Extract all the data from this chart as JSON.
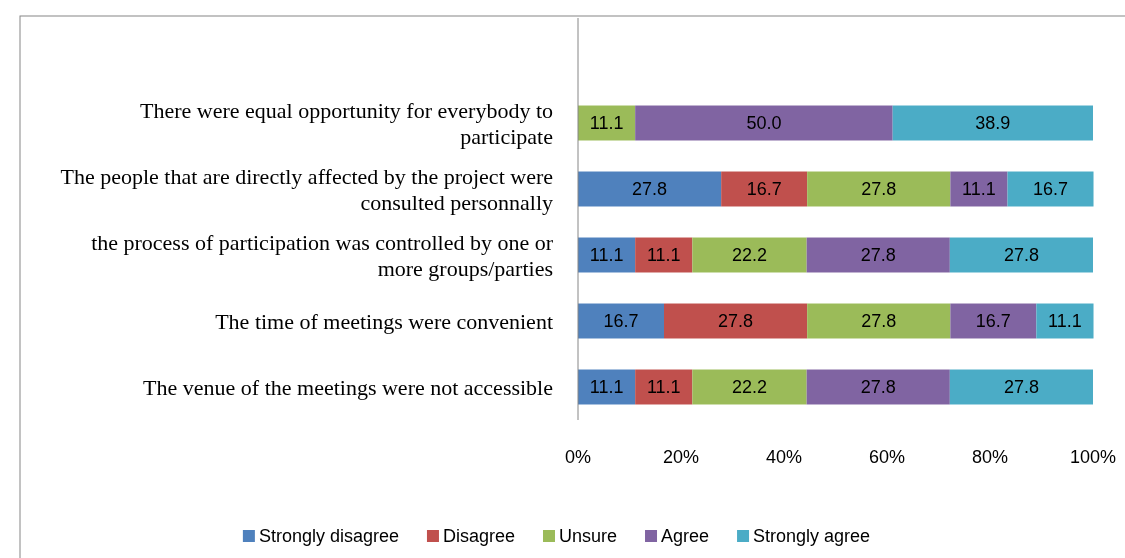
{
  "chart_data": {
    "type": "bar",
    "orientation": "horizontal",
    "stacked": true,
    "categories": [
      "There were equal opportunity for everybody to participate",
      "The people that are directly affected by the project were consulted personnally",
      "the process of participation was controlled by one or more groups/parties",
      "The time of meetings were convenient",
      "The venue of the meetings were not accessible"
    ],
    "series": [
      {
        "name": "Strongly disagree",
        "color": "#4f81bd",
        "values": [
          null,
          27.8,
          11.1,
          16.7,
          11.1
        ],
        "value_labels": [
          null,
          "27.8",
          "11.1",
          "16.7",
          "11.1"
        ]
      },
      {
        "name": "Disagree",
        "color": "#c0504d",
        "values": [
          null,
          16.7,
          11.1,
          27.8,
          11.1
        ],
        "value_labels": [
          null,
          "16.7",
          "11.1",
          "27.8",
          "11.1"
        ]
      },
      {
        "name": "Unsure",
        "color": "#9bbb59",
        "values": [
          11.1,
          27.8,
          22.2,
          27.8,
          22.2
        ],
        "value_labels": [
          "11.1",
          "27.8",
          "22.2",
          "27.8",
          "22.2"
        ]
      },
      {
        "name": "Agree",
        "color": "#8064a2",
        "values": [
          50.0,
          11.1,
          27.8,
          16.7,
          27.8
        ],
        "value_labels": [
          "50.0",
          "11.1",
          "27.8",
          "16.7",
          "27.8"
        ]
      },
      {
        "name": "Strongly agree",
        "color": "#4bacc6",
        "values": [
          38.9,
          16.7,
          27.8,
          11.1,
          27.8
        ],
        "value_labels": [
          "38.9",
          "16.7",
          "27.8",
          "11.1",
          "27.8"
        ]
      }
    ],
    "xlim": [
      0,
      100
    ],
    "xticks": [
      {
        "value": 0,
        "label": "0%"
      },
      {
        "value": 20,
        "label": "20%"
      },
      {
        "value": 40,
        "label": "40%"
      },
      {
        "value": 60,
        "label": "60%"
      },
      {
        "value": 80,
        "label": "80%"
      },
      {
        "value": 100,
        "label": "100%"
      }
    ],
    "grid": false,
    "legend": "bottom"
  }
}
